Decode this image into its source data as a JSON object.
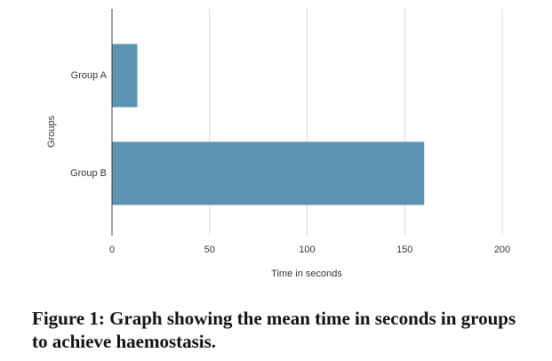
{
  "chart_data": {
    "type": "hbar",
    "categories": [
      "Group A",
      "Group B"
    ],
    "values": [
      13,
      160
    ],
    "color": "#5b93b0",
    "xlim": [
      0,
      200
    ],
    "xticks": [
      0,
      50,
      100,
      150,
      200
    ],
    "grid": true,
    "xlabel": "Time in seconds",
    "ylabel": "Groups"
  },
  "caption": "Figure 1: Graph showing the mean time in seconds in groups to achieve haemostasis."
}
